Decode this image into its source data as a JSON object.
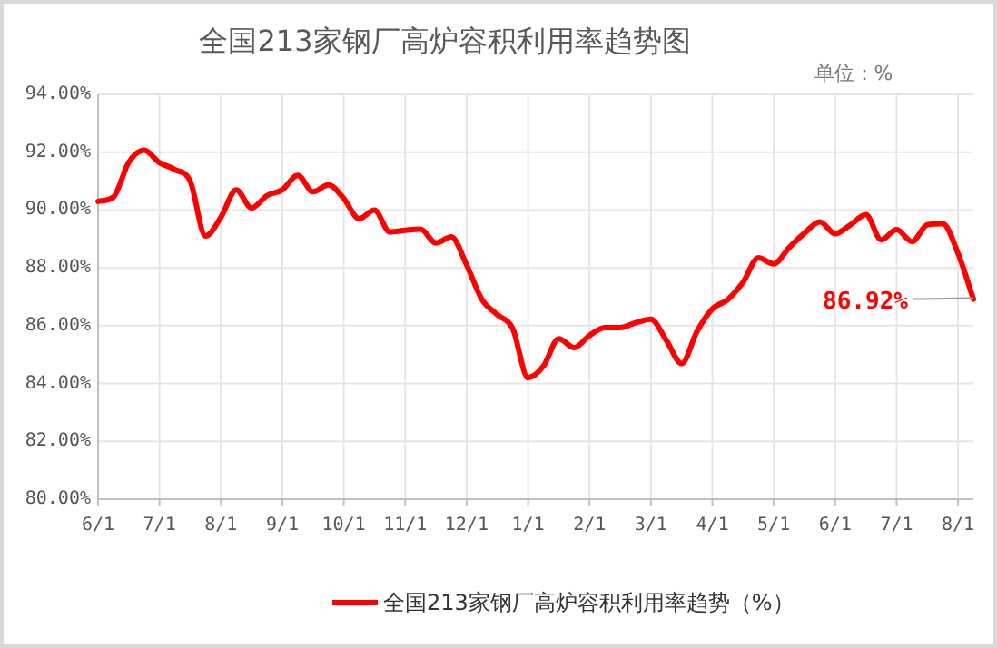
{
  "chart_data": {
    "type": "line",
    "title": "全国213家钢厂高炉容积利用率趋势图",
    "annotations": [
      "单位：%"
    ],
    "categories": [
      "6/1",
      null,
      null,
      null,
      "7/1",
      null,
      null,
      null,
      "8/1",
      null,
      null,
      null,
      "9/1",
      null,
      null,
      null,
      "10/1",
      null,
      null,
      null,
      "11/1",
      null,
      null,
      null,
      "12/1",
      null,
      null,
      null,
      "1/1",
      null,
      null,
      null,
      "2/1",
      null,
      null,
      null,
      "3/1",
      null,
      null,
      null,
      "4/1",
      null,
      null,
      null,
      "5/1",
      null,
      null,
      null,
      "6/1",
      null,
      null,
      null,
      "7/1",
      null,
      null,
      null,
      "8/1",
      null
    ],
    "series": [
      {
        "name": "全国213家钢厂高炉容积利用率趋势（%）",
        "color": "#ff0000",
        "values": [
          90.3,
          90.45,
          91.65,
          92.07,
          91.64,
          91.4,
          91.0,
          89.1,
          89.75,
          90.7,
          90.07,
          90.5,
          90.7,
          91.2,
          90.63,
          90.87,
          90.4,
          89.7,
          90.0,
          89.24,
          89.3,
          89.34,
          88.86,
          89.07,
          88.1,
          86.9,
          86.38,
          85.9,
          84.2,
          84.6,
          85.55,
          85.24,
          85.66,
          85.93,
          85.93,
          86.1,
          86.22,
          85.5,
          84.69,
          85.8,
          86.58,
          86.9,
          87.5,
          88.35,
          88.14,
          88.7,
          89.2,
          89.59,
          89.18,
          89.49,
          89.84,
          88.97,
          89.32,
          88.91,
          89.49,
          89.53,
          88.5,
          86.92
        ],
        "value_labels": [
          null,
          null,
          null,
          null,
          null,
          null,
          null,
          null,
          null,
          null,
          null,
          null,
          null,
          null,
          null,
          null,
          null,
          null,
          null,
          null,
          null,
          null,
          null,
          null,
          null,
          null,
          null,
          null,
          null,
          null,
          null,
          null,
          null,
          null,
          null,
          null,
          null,
          null,
          null,
          null,
          null,
          null,
          null,
          null,
          null,
          null,
          null,
          null,
          null,
          null,
          null,
          null,
          null,
          null,
          null,
          null,
          null,
          "86.92%"
        ]
      }
    ],
    "ylim": [
      80,
      94
    ],
    "yticks": [
      {
        "value": 80,
        "label": "80.00%"
      },
      {
        "value": 82,
        "label": "82.00%"
      },
      {
        "value": 84,
        "label": "84.00%"
      },
      {
        "value": 86,
        "label": "86.00%"
      },
      {
        "value": 88,
        "label": "88.00%"
      },
      {
        "value": 90,
        "label": "90.00%"
      },
      {
        "value": 92,
        "label": "92.00%"
      },
      {
        "value": 94,
        "label": "94.00%"
      }
    ],
    "grid": true,
    "legend": "bottom",
    "marker": "none",
    "line_style": "solid"
  }
}
